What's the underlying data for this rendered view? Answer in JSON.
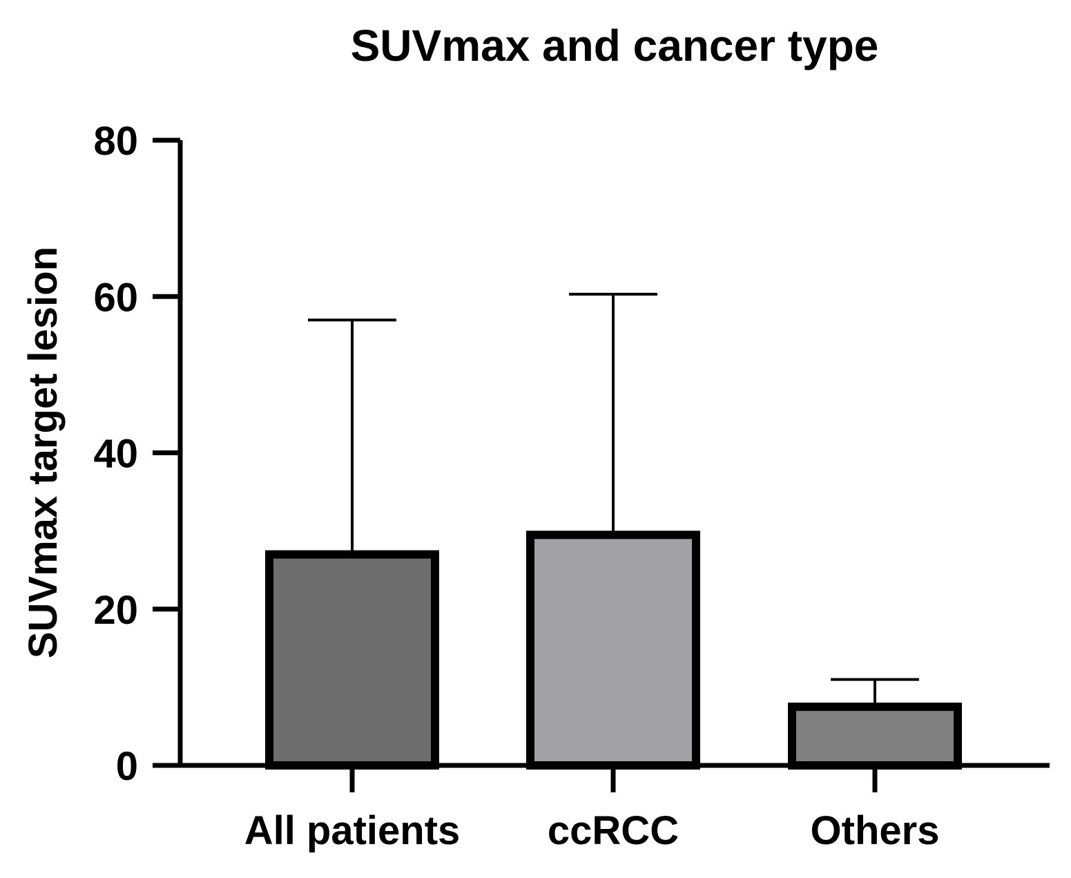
{
  "chart_data": {
    "type": "bar",
    "title": "SUVmax and cancer type",
    "xlabel": "",
    "ylabel": "SUVmax target lesion",
    "categories": [
      "All patients",
      "ccRCC",
      "Others"
    ],
    "values": [
      27,
      29.5,
      7.5
    ],
    "error_upper": [
      57,
      60.3,
      11
    ],
    "bar_colors": [
      "#6e6e6e",
      "#a2a2a6",
      "#808080"
    ],
    "ylim": [
      0,
      80
    ],
    "yticks": [
      0,
      20,
      40,
      60,
      80
    ],
    "grid": false,
    "legend": "none"
  }
}
